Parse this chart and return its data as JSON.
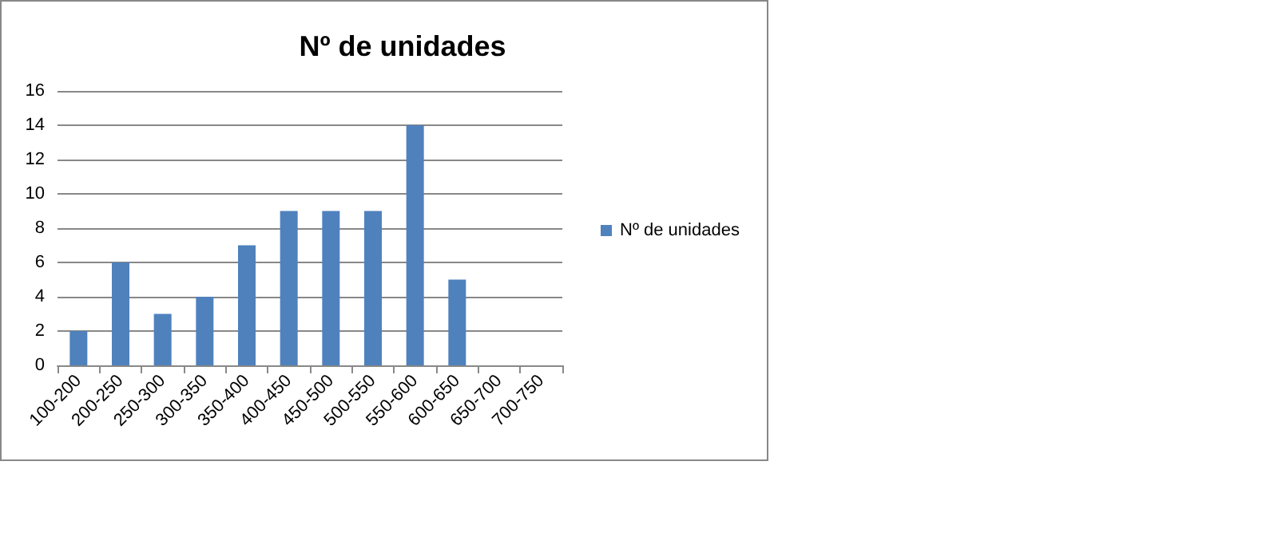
{
  "chart_data": {
    "type": "bar",
    "title": "Nº de unidades",
    "categories": [
      "100-200",
      "200-250",
      "250-300",
      "300-350",
      "350-400",
      "400-450",
      "450-500",
      "500-550",
      "550-600",
      "600-650",
      "650-700",
      "700-750"
    ],
    "series": [
      {
        "name": "Nº de unidades",
        "color": "#4f81bd",
        "values": [
          2,
          6,
          3,
          4,
          7,
          9,
          9,
          9,
          14,
          5,
          0,
          0
        ]
      }
    ],
    "ylim": [
      0,
      16
    ],
    "yticks": [
      0,
      2,
      4,
      6,
      8,
      10,
      12,
      14,
      16
    ],
    "grid": "y",
    "legend": "right"
  }
}
